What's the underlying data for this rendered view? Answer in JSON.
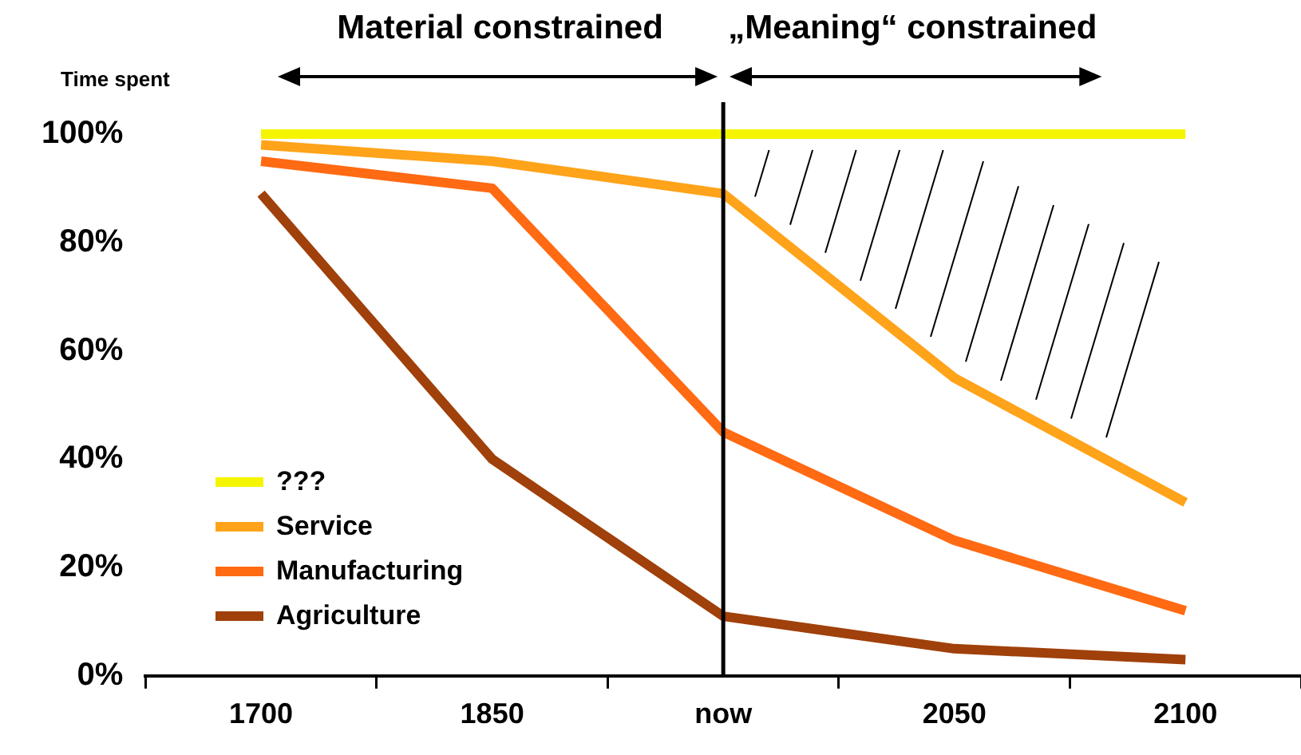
{
  "chart_data": {
    "type": "line",
    "ylabel": "Time spent",
    "annotations": [
      "Material constrained",
      "„Meaning“ constrained"
    ],
    "categories": [
      "1700",
      "1850",
      "now",
      "2050",
      "2100"
    ],
    "series": [
      {
        "name": "???",
        "color": "#f5f500",
        "values": [
          100,
          100,
          100,
          100,
          100
        ]
      },
      {
        "name": "Service",
        "color": "#ffa31a",
        "values": [
          98,
          95,
          89,
          55,
          32
        ]
      },
      {
        "name": "Manufacturing",
        "color": "#ff6a13",
        "values": [
          95,
          90,
          45,
          25,
          12
        ]
      },
      {
        "name": "Agriculture",
        "color": "#a0400a",
        "values": [
          89,
          40,
          11,
          5,
          3
        ]
      }
    ],
    "ylim": [
      0,
      100
    ],
    "yticks": [
      {
        "value": 0,
        "label": "0%"
      },
      {
        "value": 20,
        "label": "20%"
      },
      {
        "value": 40,
        "label": "40%"
      },
      {
        "value": 60,
        "label": "60%"
      },
      {
        "value": 80,
        "label": "80%"
      },
      {
        "value": 100,
        "label": "100%"
      }
    ],
    "ref_lines": [
      {
        "axis": "x",
        "value": "now",
        "color": "#000000"
      }
    ],
    "legend": "bottom left",
    "grid": false,
    "marker": "none",
    "line_style": "solid"
  }
}
